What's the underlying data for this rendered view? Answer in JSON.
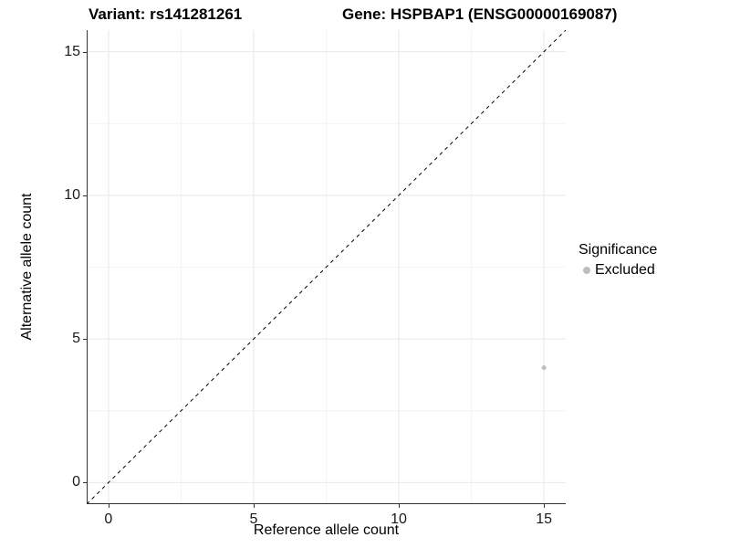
{
  "chart_data": {
    "type": "scatter",
    "title_left": "Variant: rs141281261",
    "title_right": "Gene: HSPBAP1 (ENSG00000169087)",
    "xlabel": "Reference allele count",
    "ylabel": "Alternative allele count",
    "xlim": [
      -0.75,
      15.75
    ],
    "ylim": [
      -0.75,
      15.75
    ],
    "x_ticks": [
      0,
      5,
      10,
      15
    ],
    "y_ticks": [
      0,
      5,
      10,
      15
    ],
    "x_minor_ticks": [
      2.5,
      7.5,
      12.5
    ],
    "y_minor_ticks": [
      2.5,
      7.5,
      12.5
    ],
    "grid": "major+minor",
    "legend_position": "right",
    "identity_line": {
      "slope": 1,
      "intercept": 0,
      "style": "dashed",
      "color": "#000000"
    },
    "series": [
      {
        "name": "Excluded",
        "color": "#bebebe",
        "marker": "circle",
        "point_radius": 2.5,
        "points": [
          {
            "x": 15,
            "y": 4
          }
        ]
      }
    ],
    "legend": {
      "title": "Significance",
      "entries": [
        {
          "label": "Excluded",
          "color": "#bebebe",
          "marker": "circle"
        }
      ]
    }
  },
  "colors": {
    "background": "#ffffff",
    "axis_line": "#333333",
    "grid_major": "#e8e8e8",
    "grid_minor": "#f4f4f4",
    "point": "#bebebe",
    "text": "#000000"
  }
}
